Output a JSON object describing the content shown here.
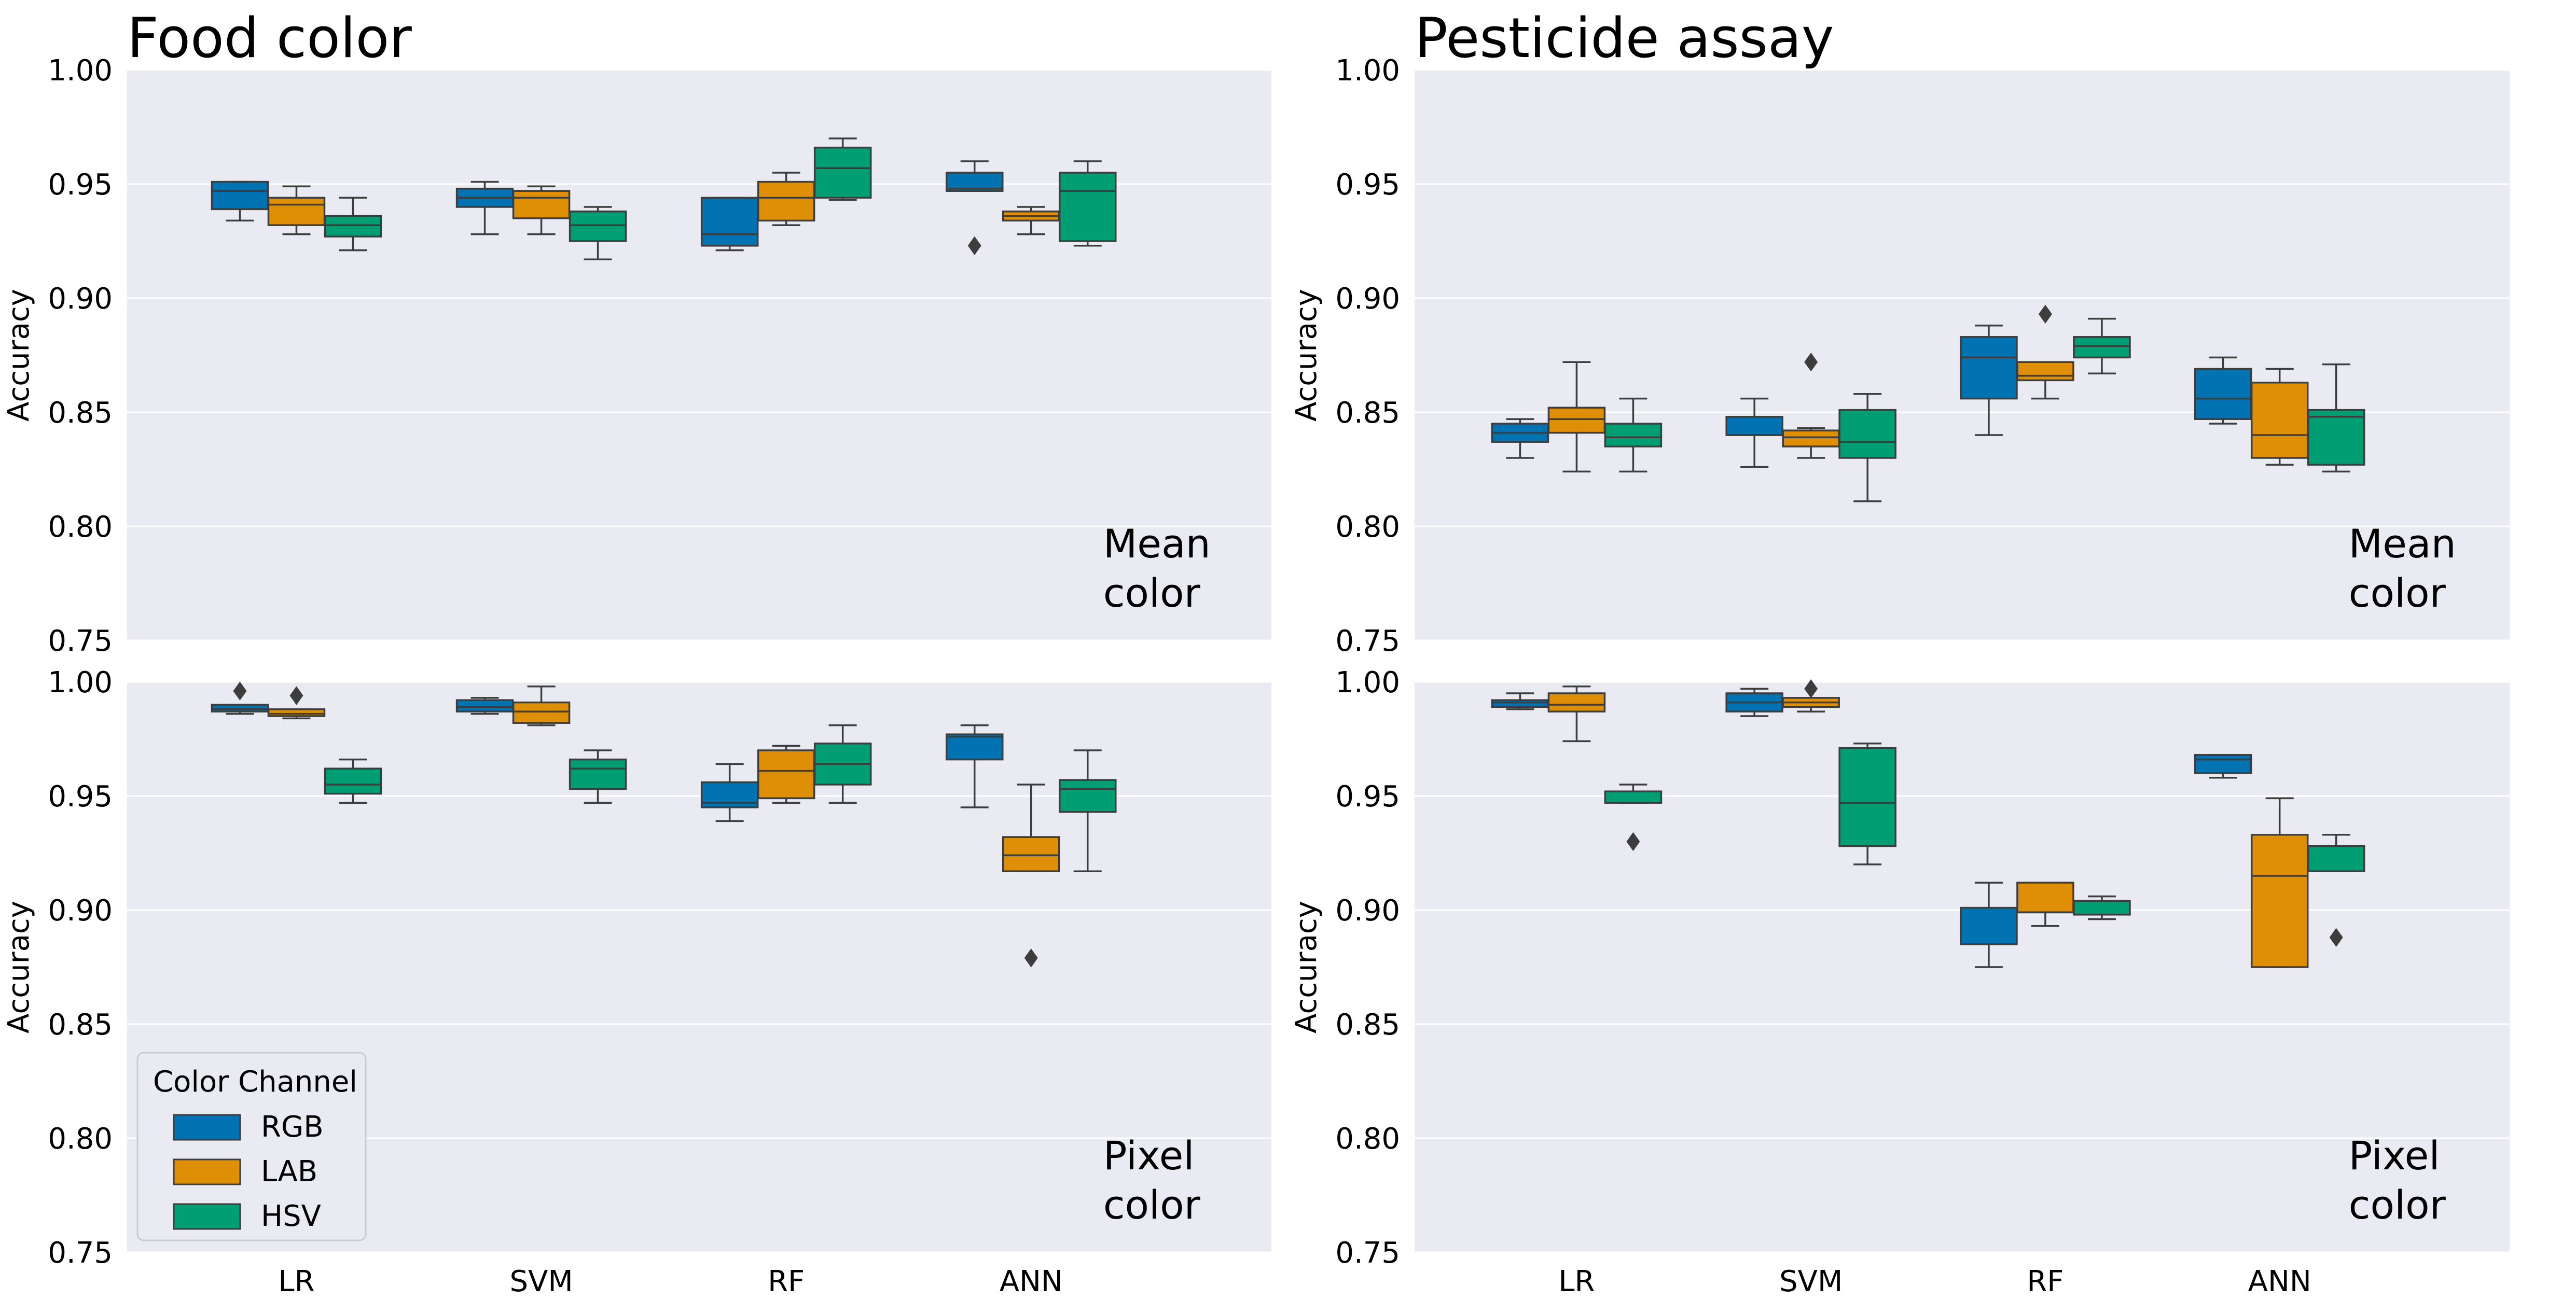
{
  "chart_data": [
    {
      "type": "box",
      "title": "Food color",
      "annotation": "Mean\ncolor",
      "ylabel": "Accuracy",
      "ylim": [
        0.75,
        1.0
      ],
      "yticks": [
        "0.75",
        "0.80",
        "0.85",
        "0.90",
        "0.95",
        "1.00"
      ],
      "categories": [
        "LR",
        "SVM",
        "RF",
        "ANN"
      ],
      "series": [
        {
          "name": "RGB",
          "boxes": [
            {
              "min": 0.934,
              "q1": 0.939,
              "median": 0.947,
              "q3": 0.951,
              "max": 0.951,
              "outliers": []
            },
            {
              "min": 0.928,
              "q1": 0.94,
              "median": 0.944,
              "q3": 0.948,
              "max": 0.951,
              "outliers": []
            },
            {
              "min": 0.921,
              "q1": 0.923,
              "median": 0.928,
              "q3": 0.944,
              "max": 0.944,
              "outliers": []
            },
            {
              "min": 0.947,
              "q1": 0.947,
              "median": 0.948,
              "q3": 0.955,
              "max": 0.96,
              "outliers": [
                0.923
              ]
            }
          ]
        },
        {
          "name": "LAB",
          "boxes": [
            {
              "min": 0.928,
              "q1": 0.932,
              "median": 0.941,
              "q3": 0.944,
              "max": 0.949,
              "outliers": []
            },
            {
              "min": 0.928,
              "q1": 0.935,
              "median": 0.944,
              "q3": 0.947,
              "max": 0.949,
              "outliers": []
            },
            {
              "min": 0.932,
              "q1": 0.934,
              "median": 0.944,
              "q3": 0.951,
              "max": 0.955,
              "outliers": []
            },
            {
              "min": 0.928,
              "q1": 0.934,
              "median": 0.936,
              "q3": 0.938,
              "max": 0.94,
              "outliers": []
            }
          ]
        },
        {
          "name": "HSV",
          "boxes": [
            {
              "min": 0.921,
              "q1": 0.927,
              "median": 0.932,
              "q3": 0.936,
              "max": 0.944,
              "outliers": []
            },
            {
              "min": 0.917,
              "q1": 0.925,
              "median": 0.932,
              "q3": 0.938,
              "max": 0.94,
              "outliers": []
            },
            {
              "min": 0.943,
              "q1": 0.944,
              "median": 0.957,
              "q3": 0.966,
              "max": 0.97,
              "outliers": []
            },
            {
              "min": 0.923,
              "q1": 0.925,
              "median": 0.947,
              "q3": 0.955,
              "max": 0.96,
              "outliers": []
            }
          ]
        }
      ]
    },
    {
      "type": "box",
      "title": "Pesticide assay",
      "annotation": "Mean\ncolor",
      "ylabel": "Accuracy",
      "ylim": [
        0.75,
        1.0
      ],
      "yticks": [
        "0.75",
        "0.80",
        "0.85",
        "0.90",
        "0.95",
        "1.00"
      ],
      "categories": [
        "LR",
        "SVM",
        "RF",
        "ANN"
      ],
      "series": [
        {
          "name": "RGB",
          "boxes": [
            {
              "min": 0.83,
              "q1": 0.837,
              "median": 0.841,
              "q3": 0.845,
              "max": 0.847,
              "outliers": []
            },
            {
              "min": 0.826,
              "q1": 0.84,
              "median": 0.84,
              "q3": 0.848,
              "max": 0.856,
              "outliers": []
            },
            {
              "min": 0.84,
              "q1": 0.856,
              "median": 0.874,
              "q3": 0.883,
              "max": 0.888,
              "outliers": []
            },
            {
              "min": 0.845,
              "q1": 0.847,
              "median": 0.856,
              "q3": 0.869,
              "max": 0.874,
              "outliers": []
            }
          ]
        },
        {
          "name": "LAB",
          "boxes": [
            {
              "min": 0.824,
              "q1": 0.841,
              "median": 0.847,
              "q3": 0.852,
              "max": 0.872,
              "outliers": []
            },
            {
              "min": 0.83,
              "q1": 0.835,
              "median": 0.839,
              "q3": 0.842,
              "max": 0.843,
              "outliers": [
                0.872
              ]
            },
            {
              "min": 0.856,
              "q1": 0.864,
              "median": 0.866,
              "q3": 0.872,
              "max": 0.872,
              "outliers": [
                0.893
              ]
            },
            {
              "min": 0.827,
              "q1": 0.83,
              "median": 0.84,
              "q3": 0.863,
              "max": 0.869,
              "outliers": []
            }
          ]
        },
        {
          "name": "HSV",
          "boxes": [
            {
              "min": 0.824,
              "q1": 0.835,
              "median": 0.839,
              "q3": 0.845,
              "max": 0.856,
              "outliers": []
            },
            {
              "min": 0.811,
              "q1": 0.83,
              "median": 0.837,
              "q3": 0.851,
              "max": 0.858,
              "outliers": []
            },
            {
              "min": 0.867,
              "q1": 0.874,
              "median": 0.879,
              "q3": 0.883,
              "max": 0.891,
              "outliers": []
            },
            {
              "min": 0.824,
              "q1": 0.827,
              "median": 0.848,
              "q3": 0.851,
              "max": 0.871,
              "outliers": []
            }
          ]
        }
      ]
    },
    {
      "type": "box",
      "title": "",
      "annotation": "Pixel\ncolor",
      "ylabel": "Accuracy",
      "ylim": [
        0.75,
        1.0
      ],
      "yticks": [
        "0.75",
        "0.80",
        "0.85",
        "0.90",
        "0.95",
        "1.00"
      ],
      "categories": [
        "LR",
        "SVM",
        "RF",
        "ANN"
      ],
      "series": [
        {
          "name": "RGB",
          "boxes": [
            {
              "min": 0.986,
              "q1": 0.987,
              "median": 0.988,
              "q3": 0.99,
              "max": 0.99,
              "outliers": [
                0.996
              ]
            },
            {
              "min": 0.986,
              "q1": 0.987,
              "median": 0.989,
              "q3": 0.992,
              "max": 0.993,
              "outliers": []
            },
            {
              "min": 0.939,
              "q1": 0.945,
              "median": 0.947,
              "q3": 0.956,
              "max": 0.964,
              "outliers": []
            },
            {
              "min": 0.945,
              "q1": 0.966,
              "median": 0.976,
              "q3": 0.977,
              "max": 0.981,
              "outliers": []
            }
          ]
        },
        {
          "name": "LAB",
          "boxes": [
            {
              "min": 0.984,
              "q1": 0.985,
              "median": 0.986,
              "q3": 0.988,
              "max": 0.988,
              "outliers": [
                0.994
              ]
            },
            {
              "min": 0.981,
              "q1": 0.982,
              "median": 0.987,
              "q3": 0.991,
              "max": 0.998,
              "outliers": []
            },
            {
              "min": 0.947,
              "q1": 0.949,
              "median": 0.961,
              "q3": 0.97,
              "max": 0.972,
              "outliers": []
            },
            {
              "min": 0.917,
              "q1": 0.917,
              "median": 0.924,
              "q3": 0.932,
              "max": 0.955,
              "outliers": [
                0.879
              ]
            }
          ]
        },
        {
          "name": "HSV",
          "boxes": [
            {
              "min": 0.947,
              "q1": 0.951,
              "median": 0.955,
              "q3": 0.962,
              "max": 0.966,
              "outliers": []
            },
            {
              "min": 0.947,
              "q1": 0.953,
              "median": 0.962,
              "q3": 0.966,
              "max": 0.97,
              "outliers": []
            },
            {
              "min": 0.947,
              "q1": 0.955,
              "median": 0.964,
              "q3": 0.973,
              "max": 0.981,
              "outliers": []
            },
            {
              "min": 0.917,
              "q1": 0.943,
              "median": 0.953,
              "q3": 0.957,
              "max": 0.97,
              "outliers": []
            }
          ]
        }
      ]
    },
    {
      "type": "box",
      "title": "",
      "annotation": "Pixel\ncolor",
      "ylabel": "Accuracy",
      "ylim": [
        0.75,
        1.0
      ],
      "yticks": [
        "0.75",
        "0.80",
        "0.85",
        "0.90",
        "0.95",
        "1.00"
      ],
      "categories": [
        "LR",
        "SVM",
        "RF",
        "ANN"
      ],
      "series": [
        {
          "name": "RGB",
          "boxes": [
            {
              "min": 0.988,
              "q1": 0.989,
              "median": 0.991,
              "q3": 0.992,
              "max": 0.995,
              "outliers": []
            },
            {
              "min": 0.985,
              "q1": 0.987,
              "median": 0.991,
              "q3": 0.995,
              "max": 0.997,
              "outliers": []
            },
            {
              "min": 0.875,
              "q1": 0.885,
              "median": 0.885,
              "q3": 0.901,
              "max": 0.912,
              "outliers": []
            },
            {
              "min": 0.958,
              "q1": 0.96,
              "median": 0.966,
              "q3": 0.968,
              "max": 0.968,
              "outliers": []
            }
          ]
        },
        {
          "name": "LAB",
          "boxes": [
            {
              "min": 0.974,
              "q1": 0.987,
              "median": 0.99,
              "q3": 0.995,
              "max": 0.998,
              "outliers": []
            },
            {
              "min": 0.987,
              "q1": 0.989,
              "median": 0.991,
              "q3": 0.993,
              "max": 0.993,
              "outliers": [
                0.997
              ]
            },
            {
              "min": 0.893,
              "q1": 0.899,
              "median": 0.899,
              "q3": 0.912,
              "max": 0.912,
              "outliers": []
            },
            {
              "min": 0.875,
              "q1": 0.875,
              "median": 0.915,
              "q3": 0.933,
              "max": 0.949,
              "outliers": []
            }
          ]
        },
        {
          "name": "HSV",
          "boxes": [
            {
              "min": 0.947,
              "q1": 0.947,
              "median": 0.952,
              "q3": 0.952,
              "max": 0.955,
              "outliers": [
                0.93
              ]
            },
            {
              "min": 0.92,
              "q1": 0.928,
              "median": 0.947,
              "q3": 0.971,
              "max": 0.973,
              "outliers": []
            },
            {
              "min": 0.896,
              "q1": 0.898,
              "median": 0.904,
              "q3": 0.904,
              "max": 0.906,
              "outliers": []
            },
            {
              "min": 0.917,
              "q1": 0.917,
              "median": 0.928,
              "q3": 0.928,
              "max": 0.933,
              "outliers": [
                0.888
              ]
            }
          ]
        }
      ]
    }
  ],
  "legend": {
    "title": "Color Channel",
    "items": [
      {
        "label": "RGB",
        "color": "#0173b2"
      },
      {
        "label": "LAB",
        "color": "#de8f05"
      },
      {
        "label": "HSV",
        "color": "#029e73"
      }
    ]
  },
  "colors": {
    "RGB": "#0173b2",
    "LAB": "#de8f05",
    "HSV": "#029e73",
    "plot_background": "#eaeaf2",
    "grid": "#ffffff",
    "box_edge": "#3d3d3d",
    "outlier": "#3d3d3d"
  }
}
